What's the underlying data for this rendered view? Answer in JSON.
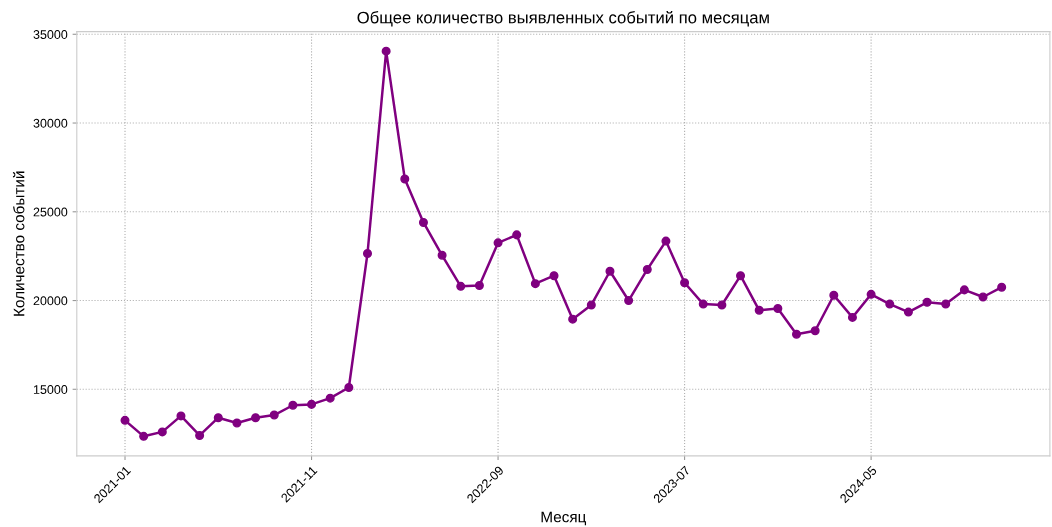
{
  "chart_data": {
    "type": "line",
    "title": "Общее количество выявленных событий по месяцам",
    "xlabel": "Месяц",
    "ylabel": "Количество событий",
    "categories": [
      "2021-01",
      null,
      null,
      null,
      null,
      null,
      null,
      null,
      null,
      null,
      "2021-11",
      null,
      null,
      null,
      null,
      null,
      null,
      null,
      null,
      null,
      "2022-09",
      null,
      null,
      null,
      null,
      null,
      null,
      null,
      null,
      null,
      "2023-07",
      null,
      null,
      null,
      null,
      null,
      null,
      null,
      null,
      null,
      "2024-05",
      null,
      null,
      null,
      null,
      null,
      null,
      null
    ],
    "series": [
      {
        "color": "#800080",
        "values": [
          13250,
          12350,
          12600,
          13500,
          12400,
          13400,
          13100,
          13400,
          13550,
          14100,
          14150,
          14500,
          15100,
          22650,
          34050,
          26850,
          24400,
          22550,
          20800,
          20850,
          23250,
          23700,
          20950,
          21400,
          18950,
          19750,
          21650,
          20000,
          21750,
          23350,
          21000,
          19800,
          19750,
          21400,
          19450,
          19550,
          18100,
          18300,
          20300,
          19050,
          20350,
          19800,
          19350,
          19900,
          19800,
          20600,
          20200,
          20750
        ]
      }
    ],
    "ylim": [
      11250,
      35150
    ],
    "yticks": [
      15000,
      20000,
      25000,
      30000,
      35000
    ],
    "grid": true,
    "marker": "circle",
    "line_style": "solid"
  }
}
